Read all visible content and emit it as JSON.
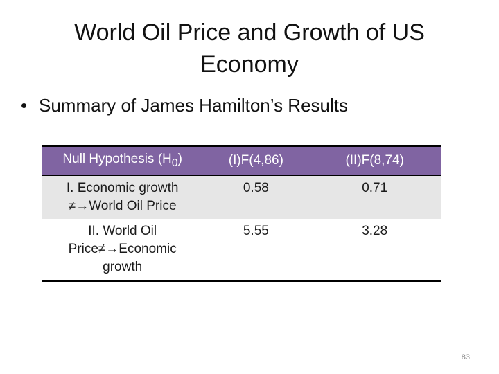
{
  "slide": {
    "title": "World Oil Price and Growth of US Economy",
    "bullet": "Summary of James Hamilton’s Results",
    "page_number": "83"
  },
  "table": {
    "headers": {
      "col1_text": "Null Hypothesis (H",
      "col1_sub": "0",
      "col1_close": ")",
      "col2": "(I)F(4,86)",
      "col3": "(II)F(8,74)"
    },
    "rows": [
      {
        "hypothesis_line1": "I. Economic growth",
        "hypothesis_line2": "≠→World Oil Price",
        "hypothesis_line3": "",
        "f1": "0.58",
        "f2": "0.71"
      },
      {
        "hypothesis_line1": "II. World Oil",
        "hypothesis_line2": "Price≠→Economic",
        "hypothesis_line3": "growth",
        "f1": "5.55",
        "f2": "3.28"
      }
    ]
  },
  "colors": {
    "header_bg": "#8064a2",
    "header_text": "#ffffff",
    "row_shaded": "#e6e6e6"
  }
}
